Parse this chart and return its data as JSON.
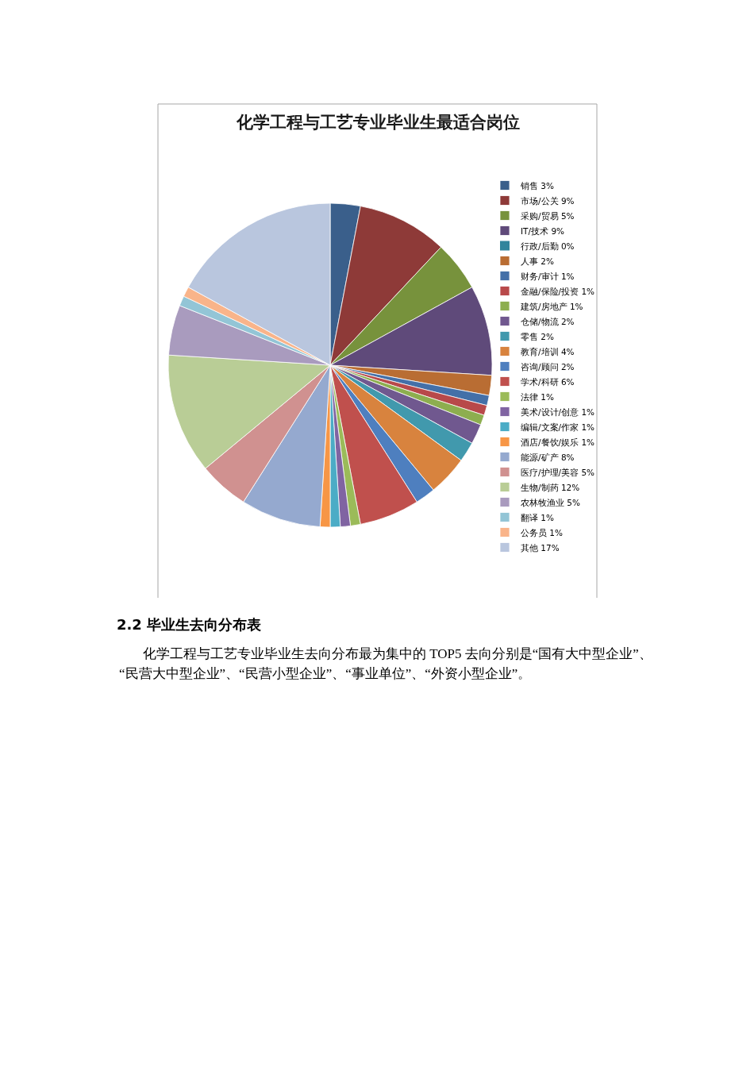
{
  "chart_data": {
    "type": "pie",
    "title": "化学工程与工艺专业毕业生最适合岗位",
    "categories": [
      "销售",
      "市场/公关",
      "采购/贸易",
      "IT/技术",
      "行政/后勤",
      "人事",
      "财务/审计",
      "金融/保险/投资",
      "建筑/房地产",
      "仓储/物流",
      "零售",
      "教育/培训",
      "咨询/顾问",
      "学术/科研",
      "法律",
      "美术/设计/创意",
      "编辑/文案/作家",
      "酒店/餐饮/娱乐",
      "能源/矿产",
      "医疗/护理/美容",
      "生物/制药",
      "农林牧渔业",
      "翻译",
      "公务员",
      "其他"
    ],
    "values": [
      3,
      9,
      5,
      9,
      0,
      2,
      1,
      1,
      1,
      2,
      2,
      4,
      2,
      6,
      1,
      1,
      1,
      1,
      8,
      5,
      12,
      5,
      1,
      1,
      17
    ],
    "value_labels": [
      "3%",
      "9%",
      "5%",
      "9%",
      "0%",
      "2%",
      "1%",
      "1%",
      "1%",
      "2%",
      "2%",
      "4%",
      "2%",
      "6%",
      "1%",
      "1%",
      "1%",
      "1%",
      "8%",
      "5%",
      "12%",
      "5%",
      "1%",
      "1%",
      "17%"
    ],
    "colors": [
      "#3a5f8b",
      "#8e3a38",
      "#77923c",
      "#5f4a7a",
      "#31859c",
      "#b96d33",
      "#4470a8",
      "#b8494a",
      "#8dae4f",
      "#70588f",
      "#4199ad",
      "#d8833e",
      "#4e7fbf",
      "#c0504d",
      "#9bbb59",
      "#8064a2",
      "#4bacc6",
      "#f79646",
      "#95a9cf",
      "#d09190",
      "#b9cd96",
      "#a99bbe",
      "#93c5d6",
      "#f9b48a",
      "#b9c6de"
    ],
    "legend": "right",
    "annotations": [
      "2.2 毕业生去向分布表",
      "化学工程与工艺专业毕业生去向分布最为集中的 TOP5 去向分别是“国有大中型企业”、“民营大中型企业”、“民营小型企业”、“事业单位”、“外资小型企业”。"
    ]
  }
}
